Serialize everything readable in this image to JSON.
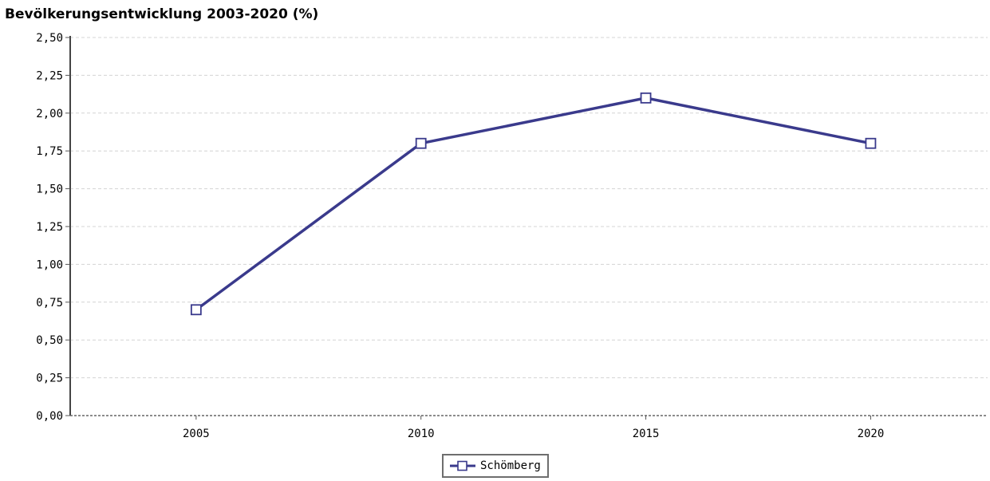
{
  "chart_data": {
    "type": "line",
    "title": "Bevölkerungsentwicklung 2003-2020 (%)",
    "xlabel": "",
    "ylabel": "",
    "x": [
      2005,
      2010,
      2015,
      2020
    ],
    "x_tick_labels": [
      "2005",
      "2010",
      "2015",
      "2020"
    ],
    "ylim": [
      0,
      2.5
    ],
    "y_ticks": [
      0,
      0.25,
      0.5,
      0.75,
      1.0,
      1.25,
      1.5,
      1.75,
      2.0,
      2.25,
      2.5
    ],
    "y_tick_labels": [
      "0,00",
      "0,25",
      "0,50",
      "0,75",
      "1,00",
      "1,25",
      "1,50",
      "1,75",
      "2,00",
      "2,25",
      "2,50"
    ],
    "grid": true,
    "legend_position": "bottom-center",
    "series": [
      {
        "name": "Schömberg",
        "values": [
          0.7,
          1.8,
          2.1,
          1.8
        ],
        "color": "#3a3a8c"
      }
    ]
  }
}
